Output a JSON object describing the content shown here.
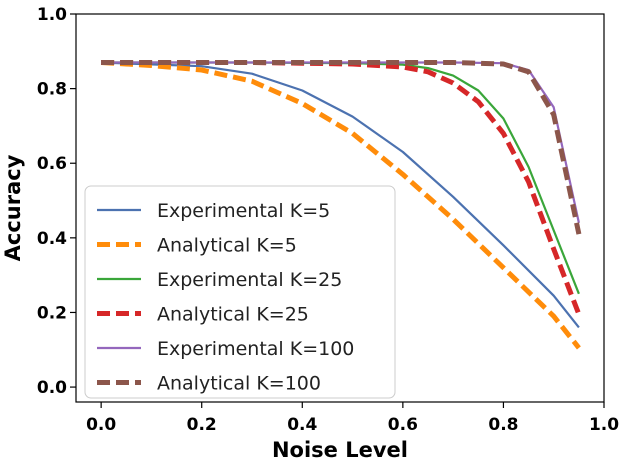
{
  "chart_data": {
    "type": "line",
    "title": "",
    "xlabel": "Noise Level",
    "ylabel": "Accuracy",
    "xlim": [
      -0.05,
      1.0
    ],
    "ylim": [
      -0.04,
      1.0
    ],
    "xticks": [
      0.0,
      0.2,
      0.4,
      0.6,
      0.8,
      1.0
    ],
    "yticks": [
      0.0,
      0.2,
      0.4,
      0.6,
      0.8,
      1.0
    ],
    "xtick_labels": [
      "0.0",
      "0.2",
      "0.4",
      "0.6",
      "0.8",
      "1.0"
    ],
    "ytick_labels": [
      "0.0",
      "0.2",
      "0.4",
      "0.6",
      "0.8",
      "1.0"
    ],
    "grid": false,
    "legend_position": "lower-left",
    "series": [
      {
        "name": "Experimental K=5",
        "color": "#4c72b0",
        "style": "solid",
        "x": [
          0.0,
          0.1,
          0.2,
          0.3,
          0.4,
          0.5,
          0.6,
          0.7,
          0.8,
          0.9,
          0.95
        ],
        "y": [
          0.87,
          0.865,
          0.86,
          0.84,
          0.795,
          0.725,
          0.63,
          0.51,
          0.38,
          0.245,
          0.16
        ]
      },
      {
        "name": "Analytical K=5",
        "color": "#ff8c0a",
        "style": "dashed",
        "x": [
          0.0,
          0.1,
          0.2,
          0.3,
          0.4,
          0.5,
          0.6,
          0.7,
          0.8,
          0.9,
          0.95
        ],
        "y": [
          0.87,
          0.862,
          0.85,
          0.82,
          0.76,
          0.68,
          0.57,
          0.45,
          0.32,
          0.19,
          0.105
        ]
      },
      {
        "name": "Experimental K=25",
        "color": "#3aa63a",
        "style": "solid",
        "x": [
          0.0,
          0.1,
          0.2,
          0.3,
          0.4,
          0.5,
          0.6,
          0.65,
          0.7,
          0.75,
          0.8,
          0.85,
          0.9,
          0.95
        ],
        "y": [
          0.87,
          0.87,
          0.87,
          0.87,
          0.869,
          0.868,
          0.864,
          0.855,
          0.835,
          0.795,
          0.72,
          0.59,
          0.42,
          0.25
        ]
      },
      {
        "name": "Analytical K=25",
        "color": "#d62728",
        "style": "dashed",
        "x": [
          0.0,
          0.1,
          0.2,
          0.3,
          0.4,
          0.5,
          0.6,
          0.65,
          0.7,
          0.75,
          0.8,
          0.85,
          0.9,
          0.95
        ],
        "y": [
          0.87,
          0.87,
          0.87,
          0.87,
          0.868,
          0.866,
          0.858,
          0.845,
          0.815,
          0.765,
          0.68,
          0.55,
          0.37,
          0.195
        ]
      },
      {
        "name": "Experimental K=100",
        "color": "#9467bd",
        "style": "solid",
        "x": [
          0.0,
          0.2,
          0.4,
          0.6,
          0.7,
          0.8,
          0.85,
          0.9,
          0.95
        ],
        "y": [
          0.87,
          0.87,
          0.87,
          0.87,
          0.87,
          0.868,
          0.85,
          0.75,
          0.44
        ]
      },
      {
        "name": "Analytical K=100",
        "color": "#8c564b",
        "style": "dashed",
        "x": [
          0.0,
          0.2,
          0.4,
          0.6,
          0.7,
          0.8,
          0.85,
          0.9,
          0.95
        ],
        "y": [
          0.87,
          0.87,
          0.87,
          0.87,
          0.87,
          0.866,
          0.845,
          0.73,
          0.41
        ]
      }
    ]
  }
}
